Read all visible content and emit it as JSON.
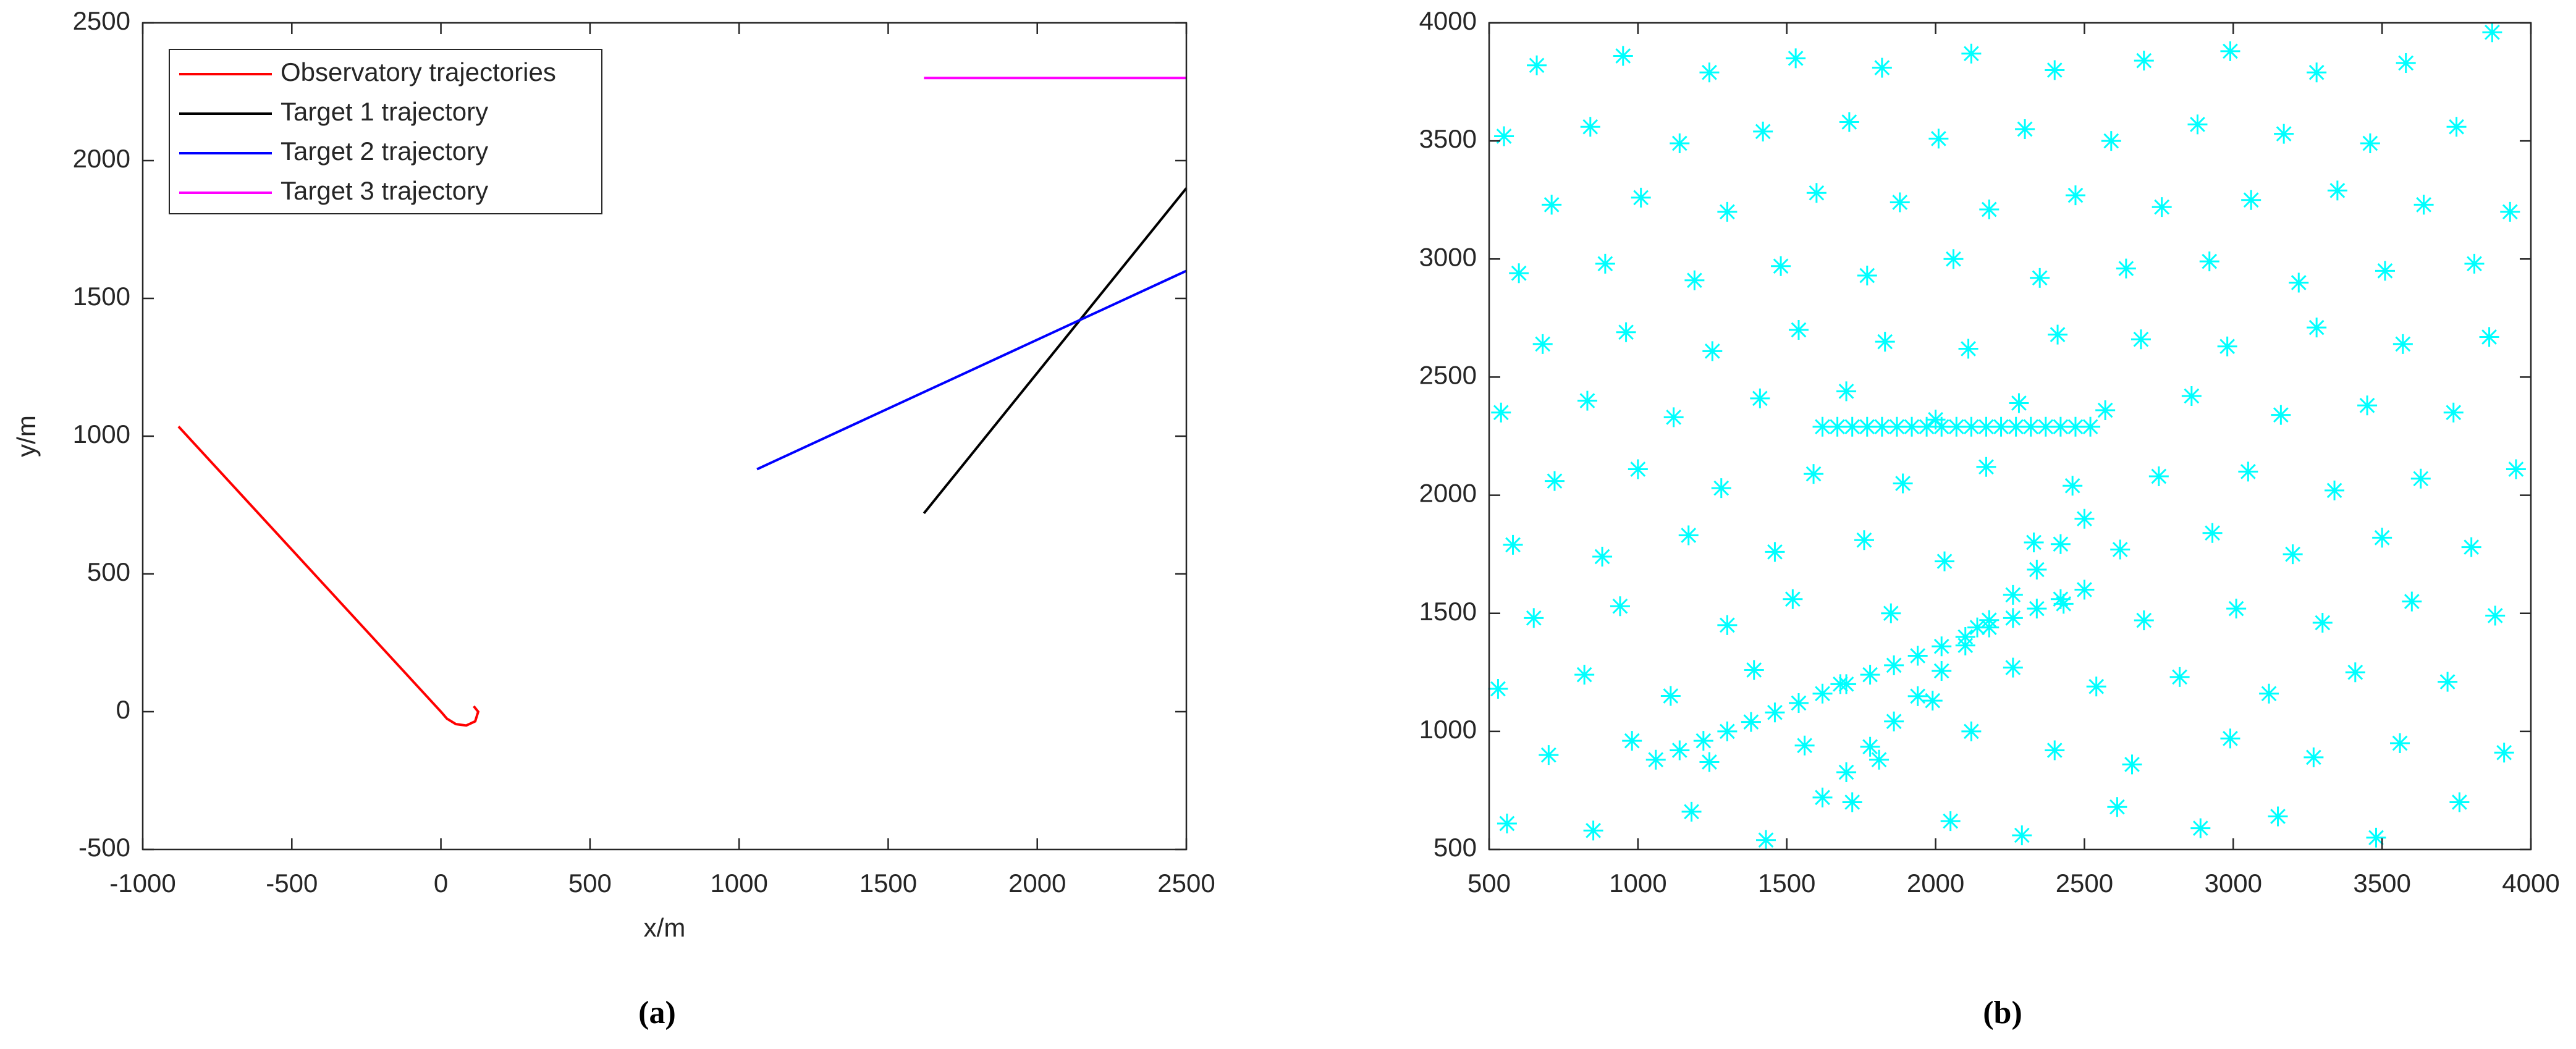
{
  "chart_data": [
    {
      "type": "line",
      "xlabel": "x/m",
      "ylabel": "y/m",
      "caption": "(a)",
      "xlim": [
        -1000,
        2500
      ],
      "ylim": [
        -500,
        2500
      ],
      "xticks": [
        -1000,
        -500,
        0,
        500,
        1000,
        1500,
        2000,
        2500
      ],
      "yticks": [
        -500,
        0,
        500,
        1000,
        1500,
        2000,
        2500
      ],
      "grid": false,
      "legend": "upper left",
      "series": [
        {
          "name": "Observatory trajectories",
          "color": "#ff0000",
          "x": [
            -880,
            0,
            20,
            50,
            85,
            115,
            125,
            110
          ],
          "y": [
            1035,
            0,
            -25,
            -45,
            -50,
            -35,
            0,
            20
          ]
        },
        {
          "name": "Target 1 trajectory",
          "color": "#000000",
          "x": [
            1620,
            2500
          ],
          "y": [
            720,
            1900
          ]
        },
        {
          "name": "Target 2 trajectory",
          "color": "#0000ff",
          "x": [
            1060,
            2500
          ],
          "y": [
            880,
            1600
          ]
        },
        {
          "name": "Target 3 trajectory",
          "color": "#ff00ff",
          "x": [
            1620,
            2500
          ],
          "y": [
            2300,
            2300
          ]
        }
      ]
    },
    {
      "type": "scatter",
      "caption": "(b)",
      "marker": "asterisk",
      "xlim": [
        500,
        4000
      ],
      "ylim": [
        500,
        4000
      ],
      "xticks": [
        500,
        1000,
        1500,
        2000,
        2500,
        3000,
        3500,
        4000
      ],
      "yticks": [
        500,
        1000,
        1500,
        2000,
        2500,
        3000,
        3500,
        4000
      ],
      "grid": false,
      "series": [
        {
          "color": "#00ffff",
          "x": [
            560,
            850,
            1180,
            1430,
            1720,
            2050,
            2290,
            2610,
            2890,
            3150,
            3480,
            3760,
            700,
            980,
            1240,
            1560,
            1810,
            2120,
            2400,
            2660,
            2990,
            3270,
            3560,
            3910,
            530,
            820,
            1110,
            1390,
            1680,
            1990,
            2260,
            2540,
            2820,
            3120,
            3410,
            3720,
            650,
            940,
            1300,
            1520,
            1850,
            2140,
            2430,
            2700,
            3010,
            3300,
            3600,
            3880,
            580,
            880,
            1170,
            1460,
            1760,
            2030,
            2330,
            2620,
            2930,
            3200,
            3500,
            3800,
            720,
            1000,
            1280,
            1590,
            1890,
            2170,
            2460,
            2750,
            3050,
            3340,
            3630,
            3950,
            540,
            830,
            1120,
            1410,
            1700,
            2000,
            2280,
            2570,
            2860,
            3160,
            3450,
            3740,
            680,
            960,
            1250,
            1540,
            1830,
            2110,
            2410,
            2690,
            2980,
            3280,
            3570,
            3860,
            600,
            890,
            1190,
            1480,
            1770,
            2060,
            2350,
            2640,
            2920,
            3220,
            3510,
            3810,
            710,
            1010,
            1300,
            1600,
            1880,
            2180,
            2470,
            2760,
            3060,
            3350,
            3640,
            3930,
            550,
            840,
            1140,
            1420,
            1710,
            2010,
            2300,
            2590,
            2880,
            3170,
            3460,
            3750,
            660,
            950,
            1240,
            1530,
            1820,
            2120,
            2400,
            2700,
            2990,
            3280,
            3580,
            3870
          ],
          "y": [
            610,
            580,
            660,
            540,
            700,
            620,
            560,
            680,
            590,
            640,
            550,
            700,
            900,
            960,
            870,
            940,
            880,
            1000,
            920,
            860,
            970,
            890,
            950,
            910,
            1180,
            1240,
            1150,
            1260,
            1200,
            1130,
            1270,
            1190,
            1230,
            1160,
            1250,
            1210,
            1480,
            1530,
            1450,
            1560,
            1500,
            1440,
            1540,
            1470,
            1520,
            1460,
            1550,
            1490,
            1790,
            1740,
            1830,
            1760,
            1810,
            1720,
            1800,
            1770,
            1840,
            1750,
            1820,
            1780,
            2060,
            2110,
            2030,
            2090,
            2050,
            2120,
            2040,
            2080,
            2100,
            2020,
            2070,
            2110,
            2350,
            2400,
            2330,
            2410,
            2440,
            2320,
            2390,
            2360,
            2420,
            2340,
            2380,
            2350,
            2640,
            2690,
            2610,
            2700,
            2650,
            2620,
            2680,
            2660,
            2630,
            2710,
            2640,
            2670,
            2940,
            2980,
            2910,
            2970,
            2930,
            3000,
            2920,
            2960,
            2990,
            2900,
            2950,
            2980,
            3230,
            3260,
            3200,
            3280,
            3240,
            3210,
            3270,
            3220,
            3250,
            3290,
            3230,
            3200,
            3520,
            3560,
            3490,
            3540,
            3580,
            3510,
            3550,
            3500,
            3570,
            3530,
            3490,
            3560,
            3820,
            3860,
            3790,
            3850,
            3810,
            3870,
            3800,
            3840,
            3880,
            3790,
            3830,
            3960
          ]
        },
        {
          "color": "#00ffff",
          "x": [
            1620,
            1670,
            1720,
            1770,
            1820,
            1870,
            1920,
            1970,
            2020,
            2070,
            2120,
            2170,
            2220,
            2270,
            2320,
            2370,
            2420,
            2470,
            2520
          ],
          "y": [
            2290,
            2290,
            2290,
            2290,
            2290,
            2290,
            2290,
            2290,
            2290,
            2290,
            2290,
            2290,
            2290,
            2290,
            2290,
            2290,
            2290,
            2290,
            2290
          ]
        },
        {
          "color": "#00ffff",
          "x": [
            1620,
            1700,
            1780,
            1860,
            1940,
            2020,
            2100,
            2180,
            2260,
            2340,
            2420,
            2500
          ],
          "y": [
            720,
            827,
            935,
            1042,
            1149,
            1256,
            1364,
            1471,
            1578,
            1685,
            1793,
            1900
          ]
        },
        {
          "color": "#00ffff",
          "x": [
            1060,
            1140,
            1220,
            1300,
            1380,
            1460,
            1540,
            1620,
            1700,
            1780,
            1860,
            1940,
            2020,
            2100,
            2180,
            2260,
            2340,
            2420,
            2500
          ],
          "y": [
            880,
            920,
            960,
            1000,
            1040,
            1080,
            1120,
            1160,
            1200,
            1240,
            1280,
            1320,
            1360,
            1400,
            1440,
            1480,
            1520,
            1560,
            1600
          ]
        }
      ]
    }
  ]
}
